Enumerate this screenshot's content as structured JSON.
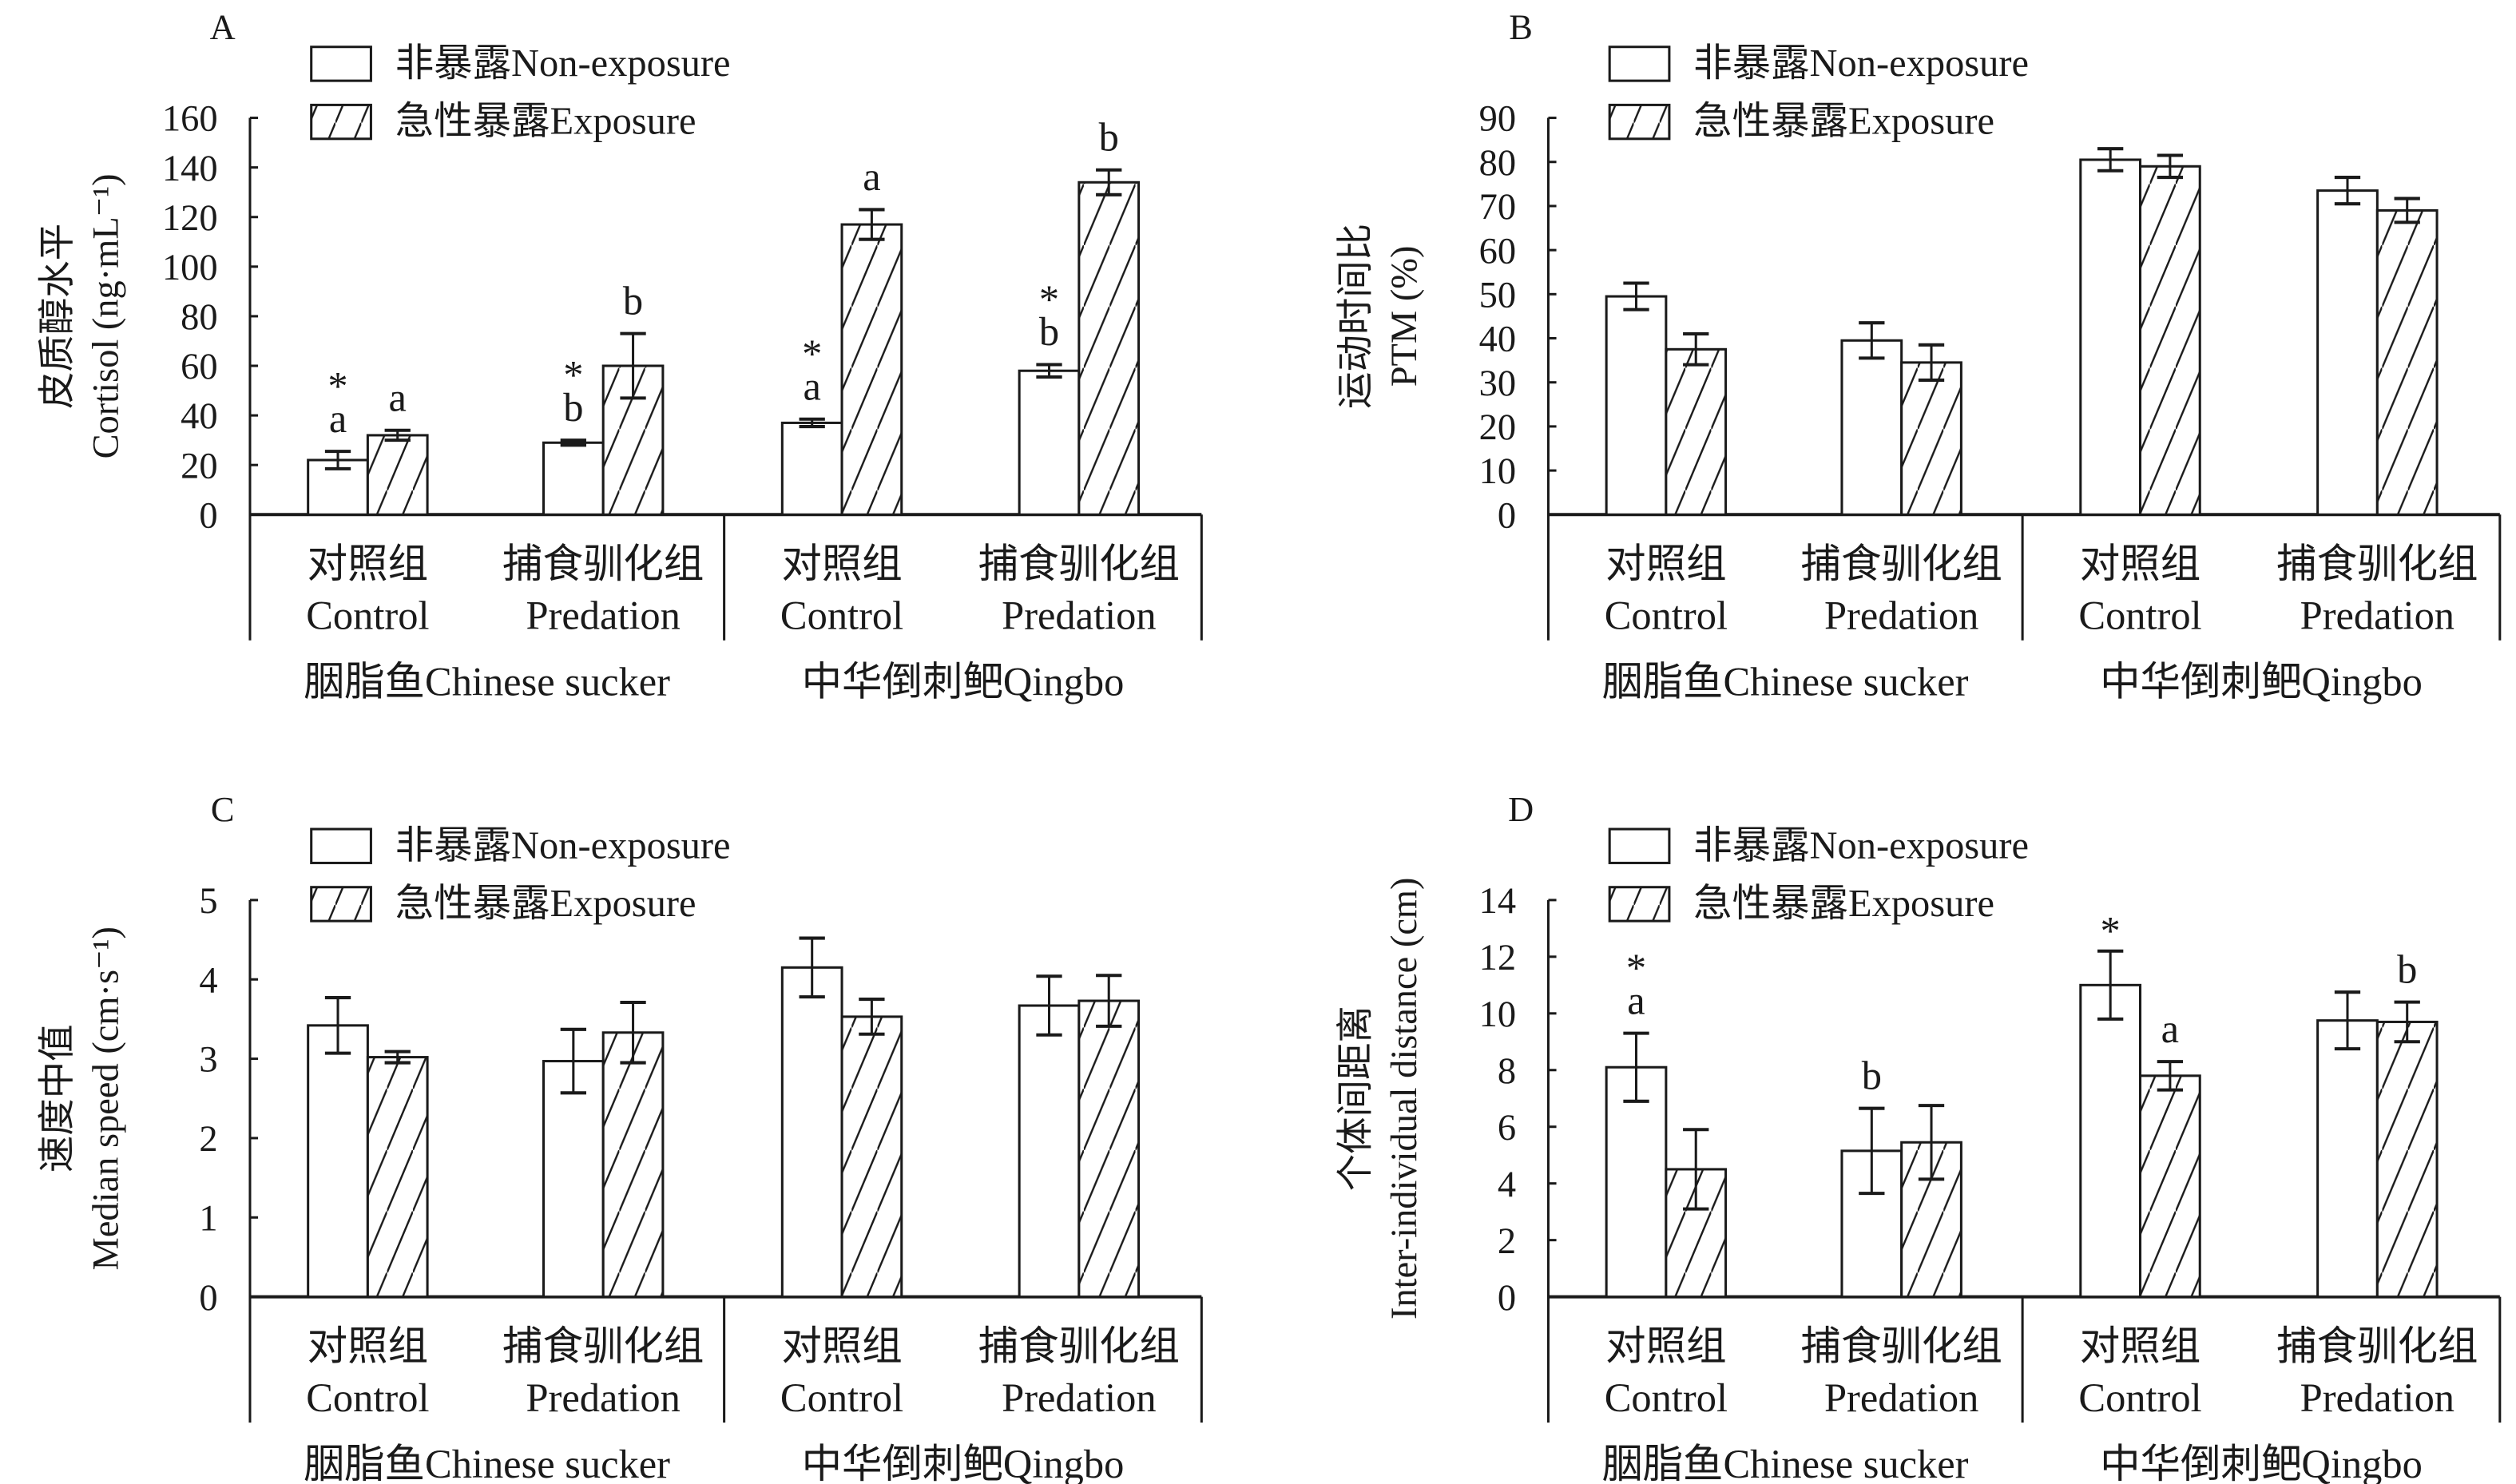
{
  "legend": {
    "non_exposure": "非暴露Non-exposure",
    "exposure": "急性暴露Exposure"
  },
  "groups": {
    "control_cn": "对照组",
    "control_en": "Control",
    "predation_cn": "捕食驯化组",
    "predation_en": "Predation",
    "species1": "胭脂鱼Chinese sucker",
    "species2": "中华倒刺鲃Qingbo"
  },
  "colors": {
    "bar_fill": "#ffffff",
    "stroke": "#1a1a1a"
  },
  "chart_data": [
    {
      "panel": "A",
      "type": "bar",
      "ylabel_cn": "皮质醇水平",
      "ylabel_en": "Cortisol (ng·mL⁻¹)",
      "ylim": [
        0,
        160
      ],
      "yticks": [
        0,
        20,
        40,
        60,
        80,
        100,
        120,
        140,
        160
      ],
      "series": [
        {
          "name": "非暴露Non-exposure",
          "values": [
            22,
            29,
            37,
            58
          ],
          "errors": [
            3.5,
            1,
            1.5,
            2.5
          ],
          "letters": [
            "a",
            "b",
            "a",
            "b"
          ],
          "stars": [
            "*",
            "*",
            "*",
            "*"
          ]
        },
        {
          "name": "急性暴露Exposure",
          "values": [
            32,
            60,
            117,
            134
          ],
          "errors": [
            2,
            13,
            6,
            5
          ],
          "letters": [
            "a",
            "b",
            "a",
            "b"
          ],
          "stars": [
            "",
            "",
            "",
            ""
          ]
        }
      ]
    },
    {
      "panel": "B",
      "type": "bar",
      "ylabel_cn": "运动时间比",
      "ylabel_en": "PTM (%)",
      "ylim": [
        0,
        90
      ],
      "yticks": [
        0,
        10,
        20,
        30,
        40,
        50,
        60,
        70,
        80,
        90
      ],
      "series": [
        {
          "name": "非暴露Non-exposure",
          "values": [
            49.5,
            39.5,
            80.5,
            73.5
          ],
          "errors": [
            3,
            4,
            2.5,
            3
          ],
          "letters": [
            "",
            "",
            "",
            ""
          ],
          "stars": [
            "",
            "",
            "",
            ""
          ]
        },
        {
          "name": "急性暴露Exposure",
          "values": [
            37.5,
            34.5,
            79,
            69
          ],
          "errors": [
            3.5,
            4,
            2.5,
            2.7
          ],
          "letters": [
            "",
            "",
            "",
            ""
          ],
          "stars": [
            "",
            "",
            "",
            ""
          ]
        }
      ]
    },
    {
      "panel": "C",
      "type": "bar",
      "ylabel_cn": "速度中值",
      "ylabel_en": "Median speed (cm·s⁻¹)",
      "ylim": [
        0,
        5
      ],
      "yticks": [
        0,
        1,
        2,
        3,
        4,
        5
      ],
      "series": [
        {
          "name": "非暴露Non-exposure",
          "values": [
            3.42,
            2.97,
            4.15,
            3.67
          ],
          "errors": [
            0.35,
            0.4,
            0.37,
            0.37
          ],
          "letters": [
            "",
            "",
            "",
            ""
          ],
          "stars": [
            "",
            "",
            "",
            ""
          ]
        },
        {
          "name": "急性暴露Exposure",
          "values": [
            3.02,
            3.33,
            3.53,
            3.73
          ],
          "errors": [
            0.07,
            0.38,
            0.22,
            0.32
          ],
          "letters": [
            "",
            "",
            "",
            ""
          ],
          "stars": [
            "",
            "",
            "",
            ""
          ]
        }
      ]
    },
    {
      "panel": "D",
      "type": "bar",
      "ylabel_cn": "个体间距离",
      "ylabel_en": "Inter-individual distance (cm)",
      "ylim": [
        0,
        14
      ],
      "yticks": [
        0,
        2,
        4,
        6,
        8,
        10,
        12,
        14
      ],
      "series": [
        {
          "name": "非暴露Non-exposure",
          "values": [
            8.1,
            5.15,
            11,
            9.75
          ],
          "errors": [
            1.2,
            1.5,
            1.2,
            1.0
          ],
          "letters": [
            "a",
            "b",
            "",
            ""
          ],
          "stars": [
            "*",
            "",
            "*",
            ""
          ]
        },
        {
          "name": "急性暴露Exposure",
          "values": [
            4.5,
            5.45,
            7.8,
            9.7
          ],
          "errors": [
            1.4,
            1.3,
            0.5,
            0.7
          ],
          "letters": [
            "",
            "",
            "a",
            "b"
          ],
          "stars": [
            "",
            "",
            "",
            ""
          ]
        }
      ]
    }
  ]
}
